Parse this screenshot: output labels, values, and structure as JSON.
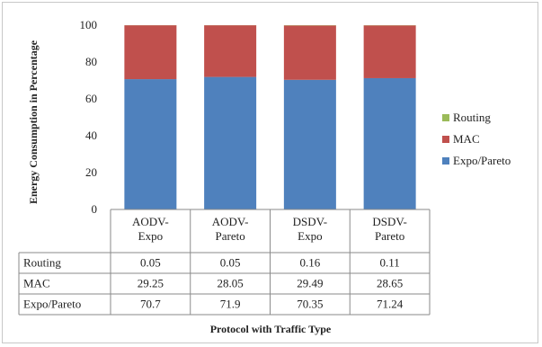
{
  "chart_data": {
    "type": "bar",
    "stacked": true,
    "categories": [
      [
        "AODV-",
        "Expo"
      ],
      [
        "AODV-",
        "Pareto"
      ],
      [
        "DSDV-",
        "Expo"
      ],
      [
        "DSDV-",
        "Pareto"
      ]
    ],
    "series": [
      {
        "name": "Routing",
        "values": [
          "0.05",
          "0.05",
          "0.16",
          "0.11"
        ],
        "color": "#9bbb59"
      },
      {
        "name": "MAC",
        "values": [
          "29.25",
          "28.05",
          "29.49",
          "28.65"
        ],
        "color": "#c0504d"
      },
      {
        "name": "Expo/Pareto",
        "values": [
          "70.7",
          "71.9",
          "70.35",
          "71.24"
        ],
        "color": "#4f81bd"
      }
    ],
    "title": "",
    "xlabel": "Protocol with Traffic Type",
    "ylabel": "Energy Consumption in Percentage",
    "ylim": [
      0,
      100
    ],
    "yticks": [
      "0",
      "20",
      "40",
      "60",
      "80",
      "100"
    ],
    "grid": false,
    "legend": "right",
    "data_table": true
  }
}
